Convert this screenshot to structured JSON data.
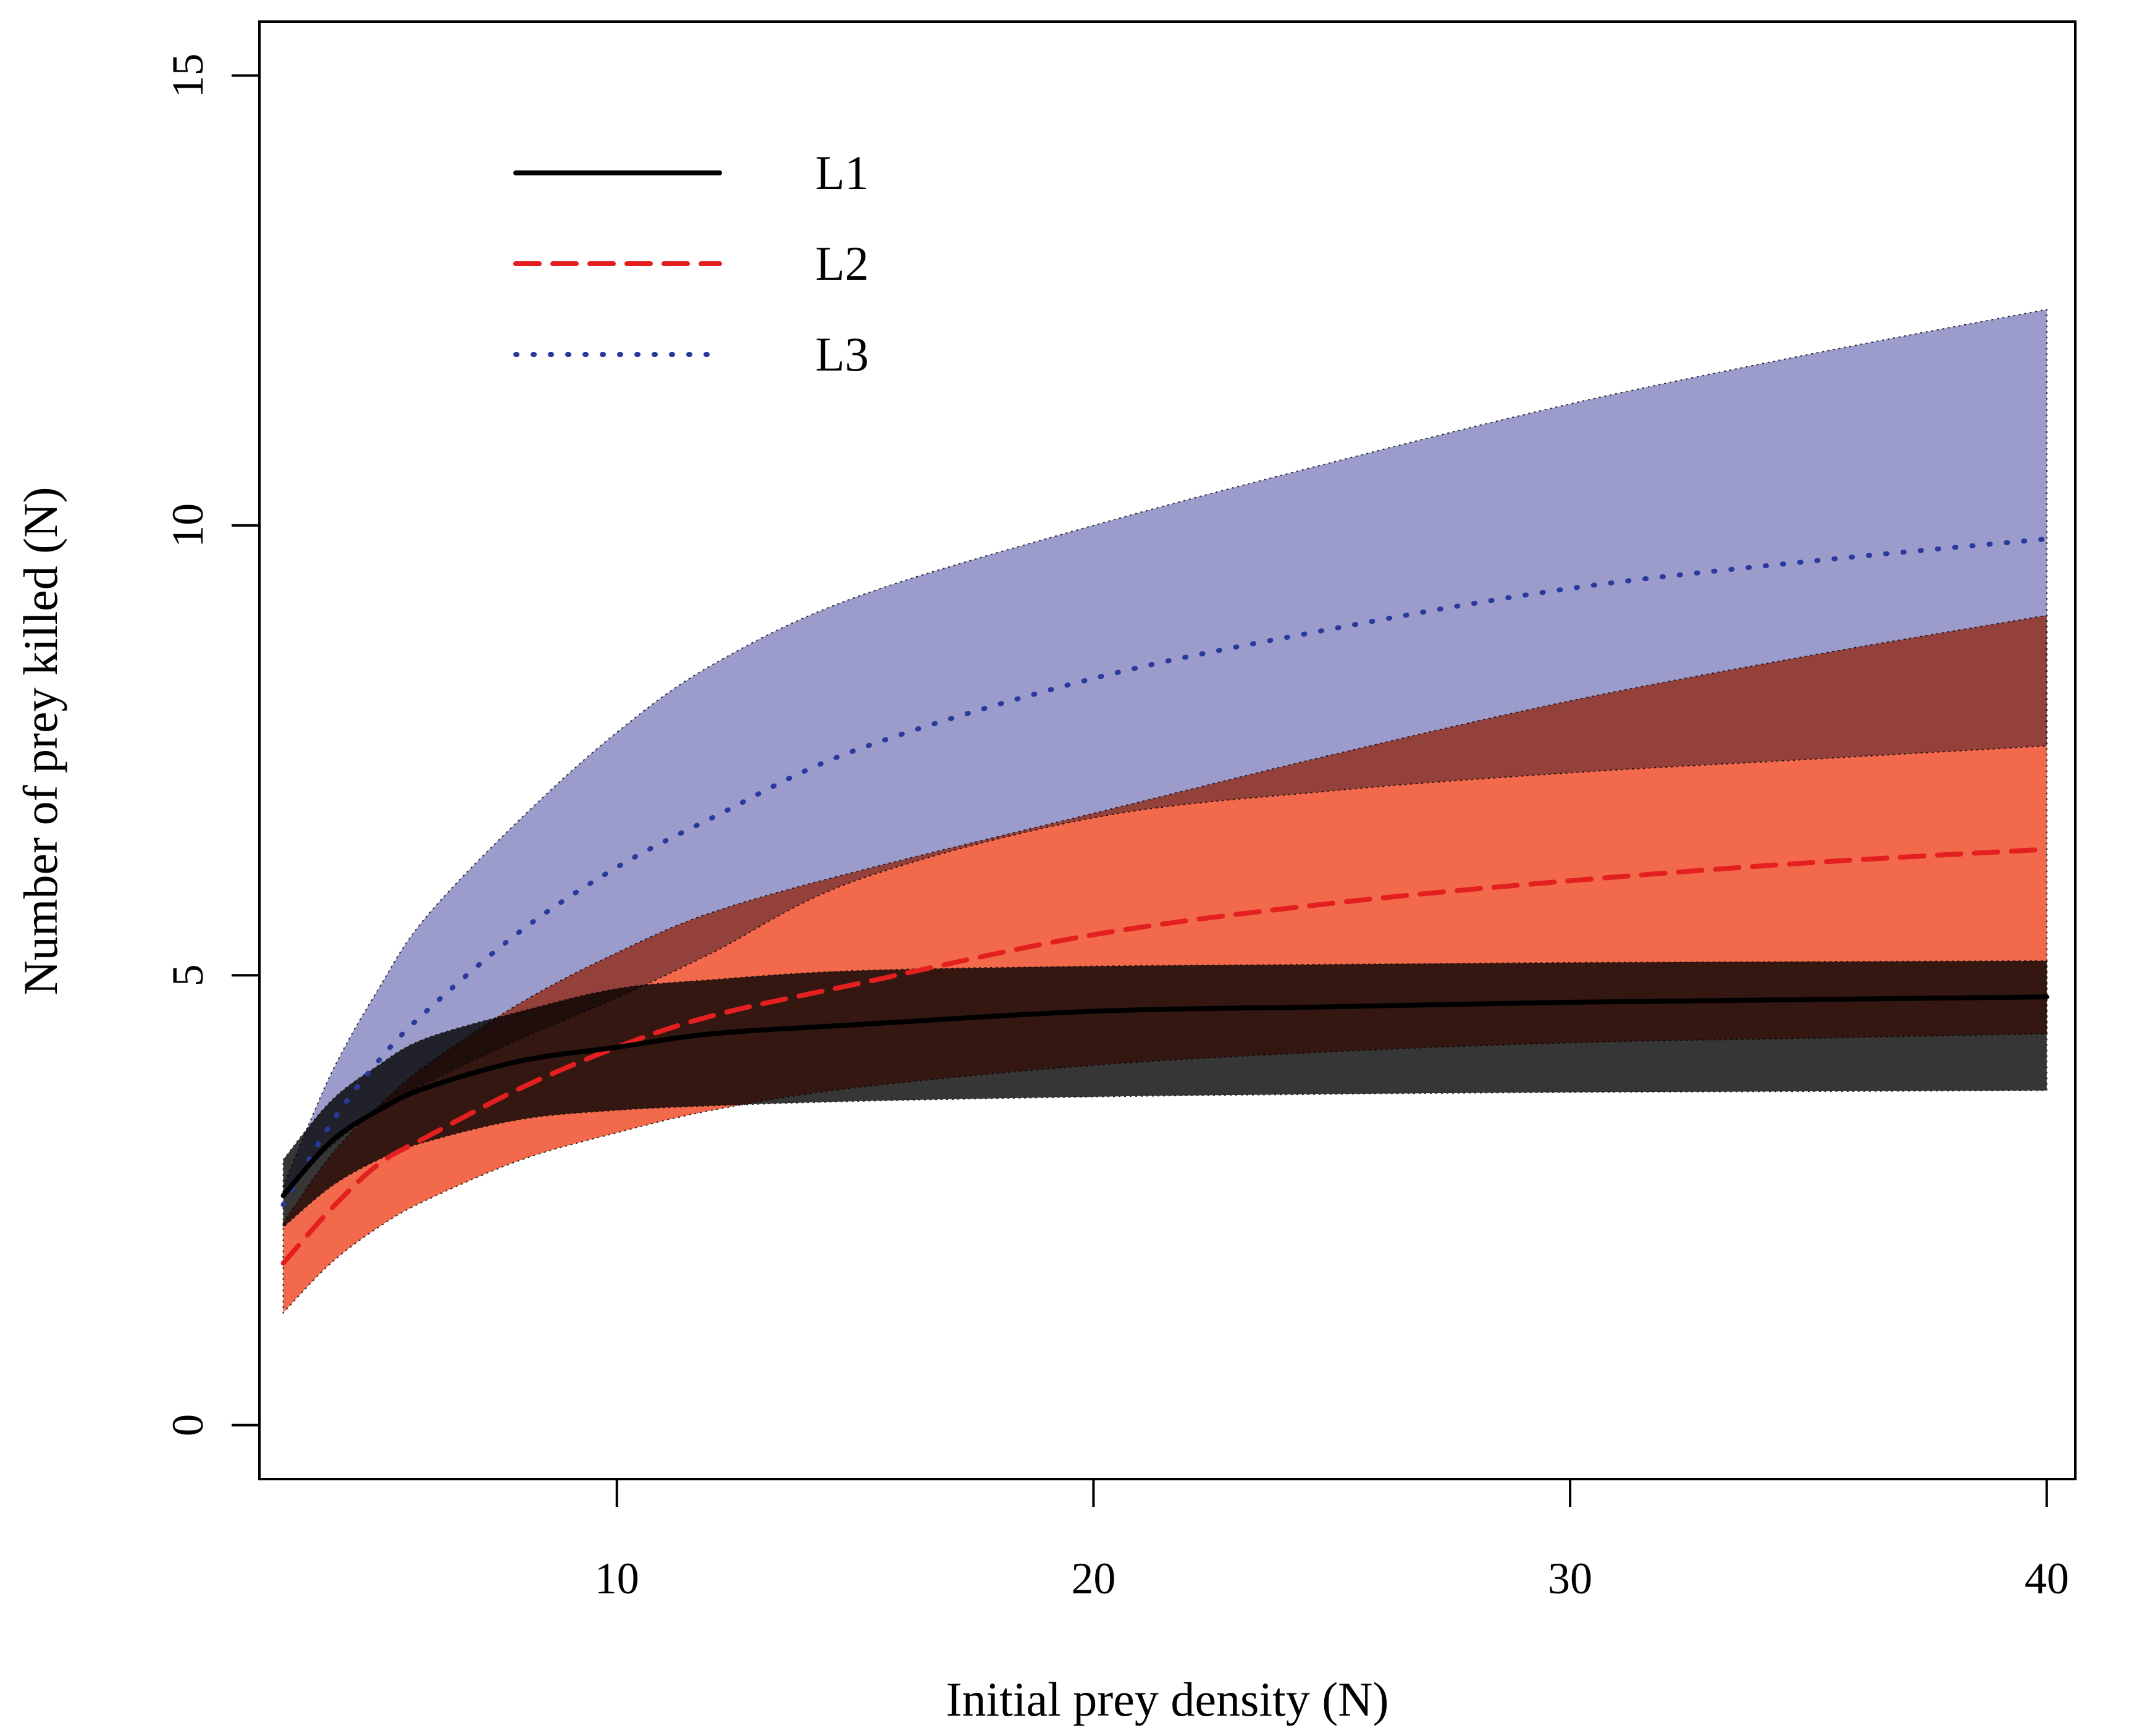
{
  "chart_data": {
    "type": "line",
    "title": "",
    "xlabel": "Initial prey density (N)",
    "ylabel": "Number of prey killed (N)",
    "xlim": [
      2.5,
      40.6
    ],
    "ylim": [
      -0.6,
      15.6
    ],
    "xticks": [
      10,
      20,
      30,
      40
    ],
    "yticks": [
      0,
      5,
      10,
      15
    ],
    "x": [
      3,
      4,
      5,
      6,
      8,
      10,
      12,
      15,
      20,
      25,
      30,
      35,
      40
    ],
    "series": [
      {
        "name": "L1",
        "style": "solid",
        "color": "#000000",
        "band_color": "#0a0a0a",
        "values": [
          2.55,
          3.15,
          3.5,
          3.75,
          4.05,
          4.2,
          4.35,
          4.45,
          4.6,
          4.65,
          4.7,
          4.73,
          4.76
        ],
        "lower": [
          2.2,
          2.65,
          2.95,
          3.15,
          3.4,
          3.5,
          3.55,
          3.6,
          3.65,
          3.68,
          3.7,
          3.71,
          3.72
        ],
        "upper": [
          2.95,
          3.6,
          4.0,
          4.3,
          4.6,
          4.85,
          4.95,
          5.05,
          5.1,
          5.12,
          5.14,
          5.15,
          5.16
        ]
      },
      {
        "name": "L2",
        "style": "dashed",
        "color": "#e3201f",
        "band_color": "#f26a4b",
        "values": [
          1.8,
          2.4,
          2.9,
          3.2,
          3.75,
          4.2,
          4.55,
          4.9,
          5.45,
          5.8,
          6.05,
          6.25,
          6.4
        ],
        "lower": [
          1.25,
          1.8,
          2.2,
          2.5,
          2.95,
          3.25,
          3.5,
          3.75,
          4.0,
          4.15,
          4.25,
          4.3,
          4.35
        ],
        "upper": [
          2.25,
          3.0,
          3.55,
          4.0,
          4.7,
          5.25,
          5.7,
          6.15,
          6.8,
          7.45,
          8.05,
          8.55,
          9.0
        ]
      },
      {
        "name": "L3",
        "style": "dotted",
        "color": "#2a3a9c",
        "band_color": "#9c9ccc",
        "values": [
          2.45,
          3.35,
          4.05,
          4.6,
          5.5,
          6.2,
          6.75,
          7.5,
          8.3,
          8.85,
          9.3,
          9.6,
          9.85
        ],
        "lower": [
          2.55,
          3.1,
          3.5,
          3.8,
          4.3,
          4.75,
          5.25,
          6.05,
          6.75,
          7.05,
          7.25,
          7.4,
          7.55
        ],
        "upper": [
          2.65,
          3.9,
          4.85,
          5.65,
          6.75,
          7.7,
          8.45,
          9.2,
          10.0,
          10.7,
          11.35,
          11.9,
          12.4
        ]
      }
    ],
    "legend": {
      "position": "top-left",
      "entries": [
        "L1",
        "L2",
        "L3"
      ]
    }
  }
}
